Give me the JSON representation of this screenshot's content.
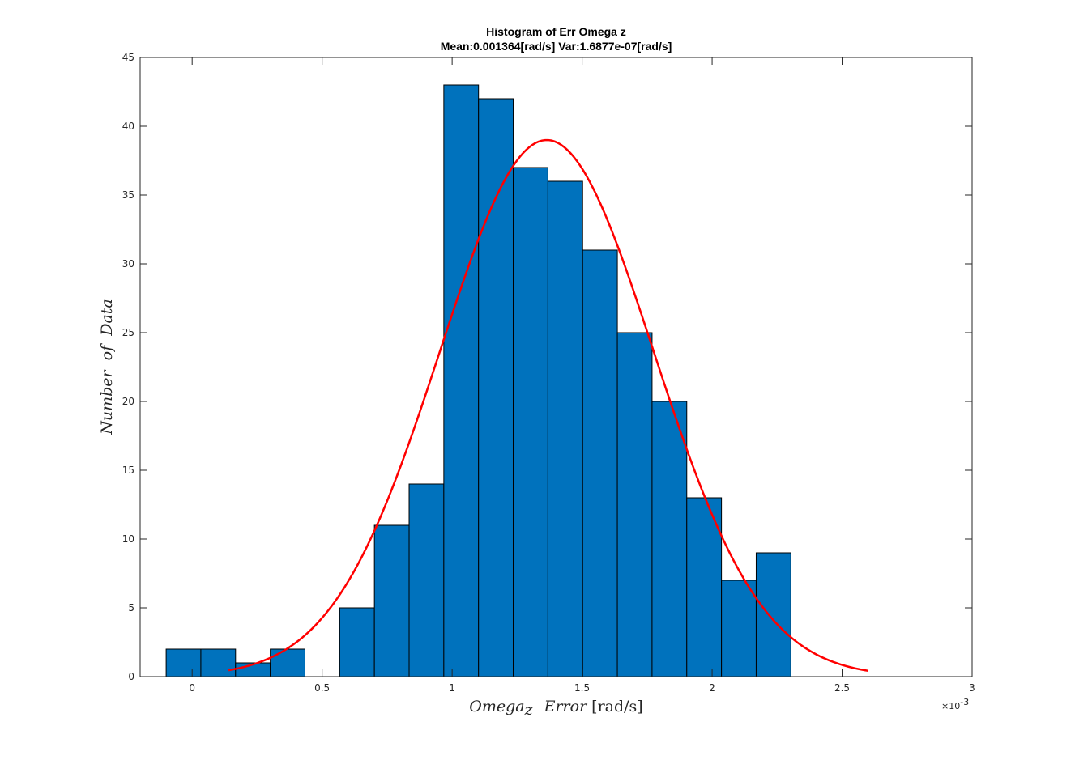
{
  "chart_data": {
    "type": "bar",
    "title": "Histogram of Err Omega z",
    "subtitle": "Mean:0.001364[rad/s]  Var:1.6877e-07[rad/s]",
    "xlabel": {
      "main": "Omega",
      "sub": "z",
      "mid": "Error",
      "unit": "[rad/s]"
    },
    "ylabel": "Number  of  Data",
    "x_exponent_label": "×10",
    "x_exponent_power": "-3",
    "xlim": [
      -0.2,
      3.0
    ],
    "ylim": [
      0,
      45
    ],
    "x_ticks": [
      0,
      0.5,
      1,
      1.5,
      2,
      2.5,
      3
    ],
    "x_tick_labels": [
      "0",
      "0.5",
      "1",
      "1.5",
      "2",
      "2.5",
      "3"
    ],
    "y_ticks": [
      0,
      5,
      10,
      15,
      20,
      25,
      30,
      35,
      40,
      45
    ],
    "y_tick_labels": [
      "0",
      "5",
      "10",
      "15",
      "20",
      "25",
      "30",
      "35",
      "40",
      "45"
    ],
    "bin_edges": [
      -0.1,
      0.0335,
      0.167,
      0.3005,
      0.434,
      0.5675,
      0.701,
      0.8345,
      0.968,
      1.1015,
      1.235,
      1.3685,
      1.502,
      1.6355,
      1.769,
      1.9025,
      2.036,
      2.1695,
      2.303
    ],
    "bin_counts": [
      2,
      2,
      1,
      2,
      0,
      5,
      11,
      14,
      43,
      42,
      37,
      36,
      31,
      25,
      20,
      13,
      7,
      9
    ],
    "bar_color": "#0072BD",
    "fit_curve": {
      "color": "#FF0000",
      "x_start": 0.14,
      "x_end": 2.6,
      "mean": 1.364,
      "sigma": 0.4108,
      "peak": 39.0
    },
    "grid": false,
    "legend": "none"
  }
}
